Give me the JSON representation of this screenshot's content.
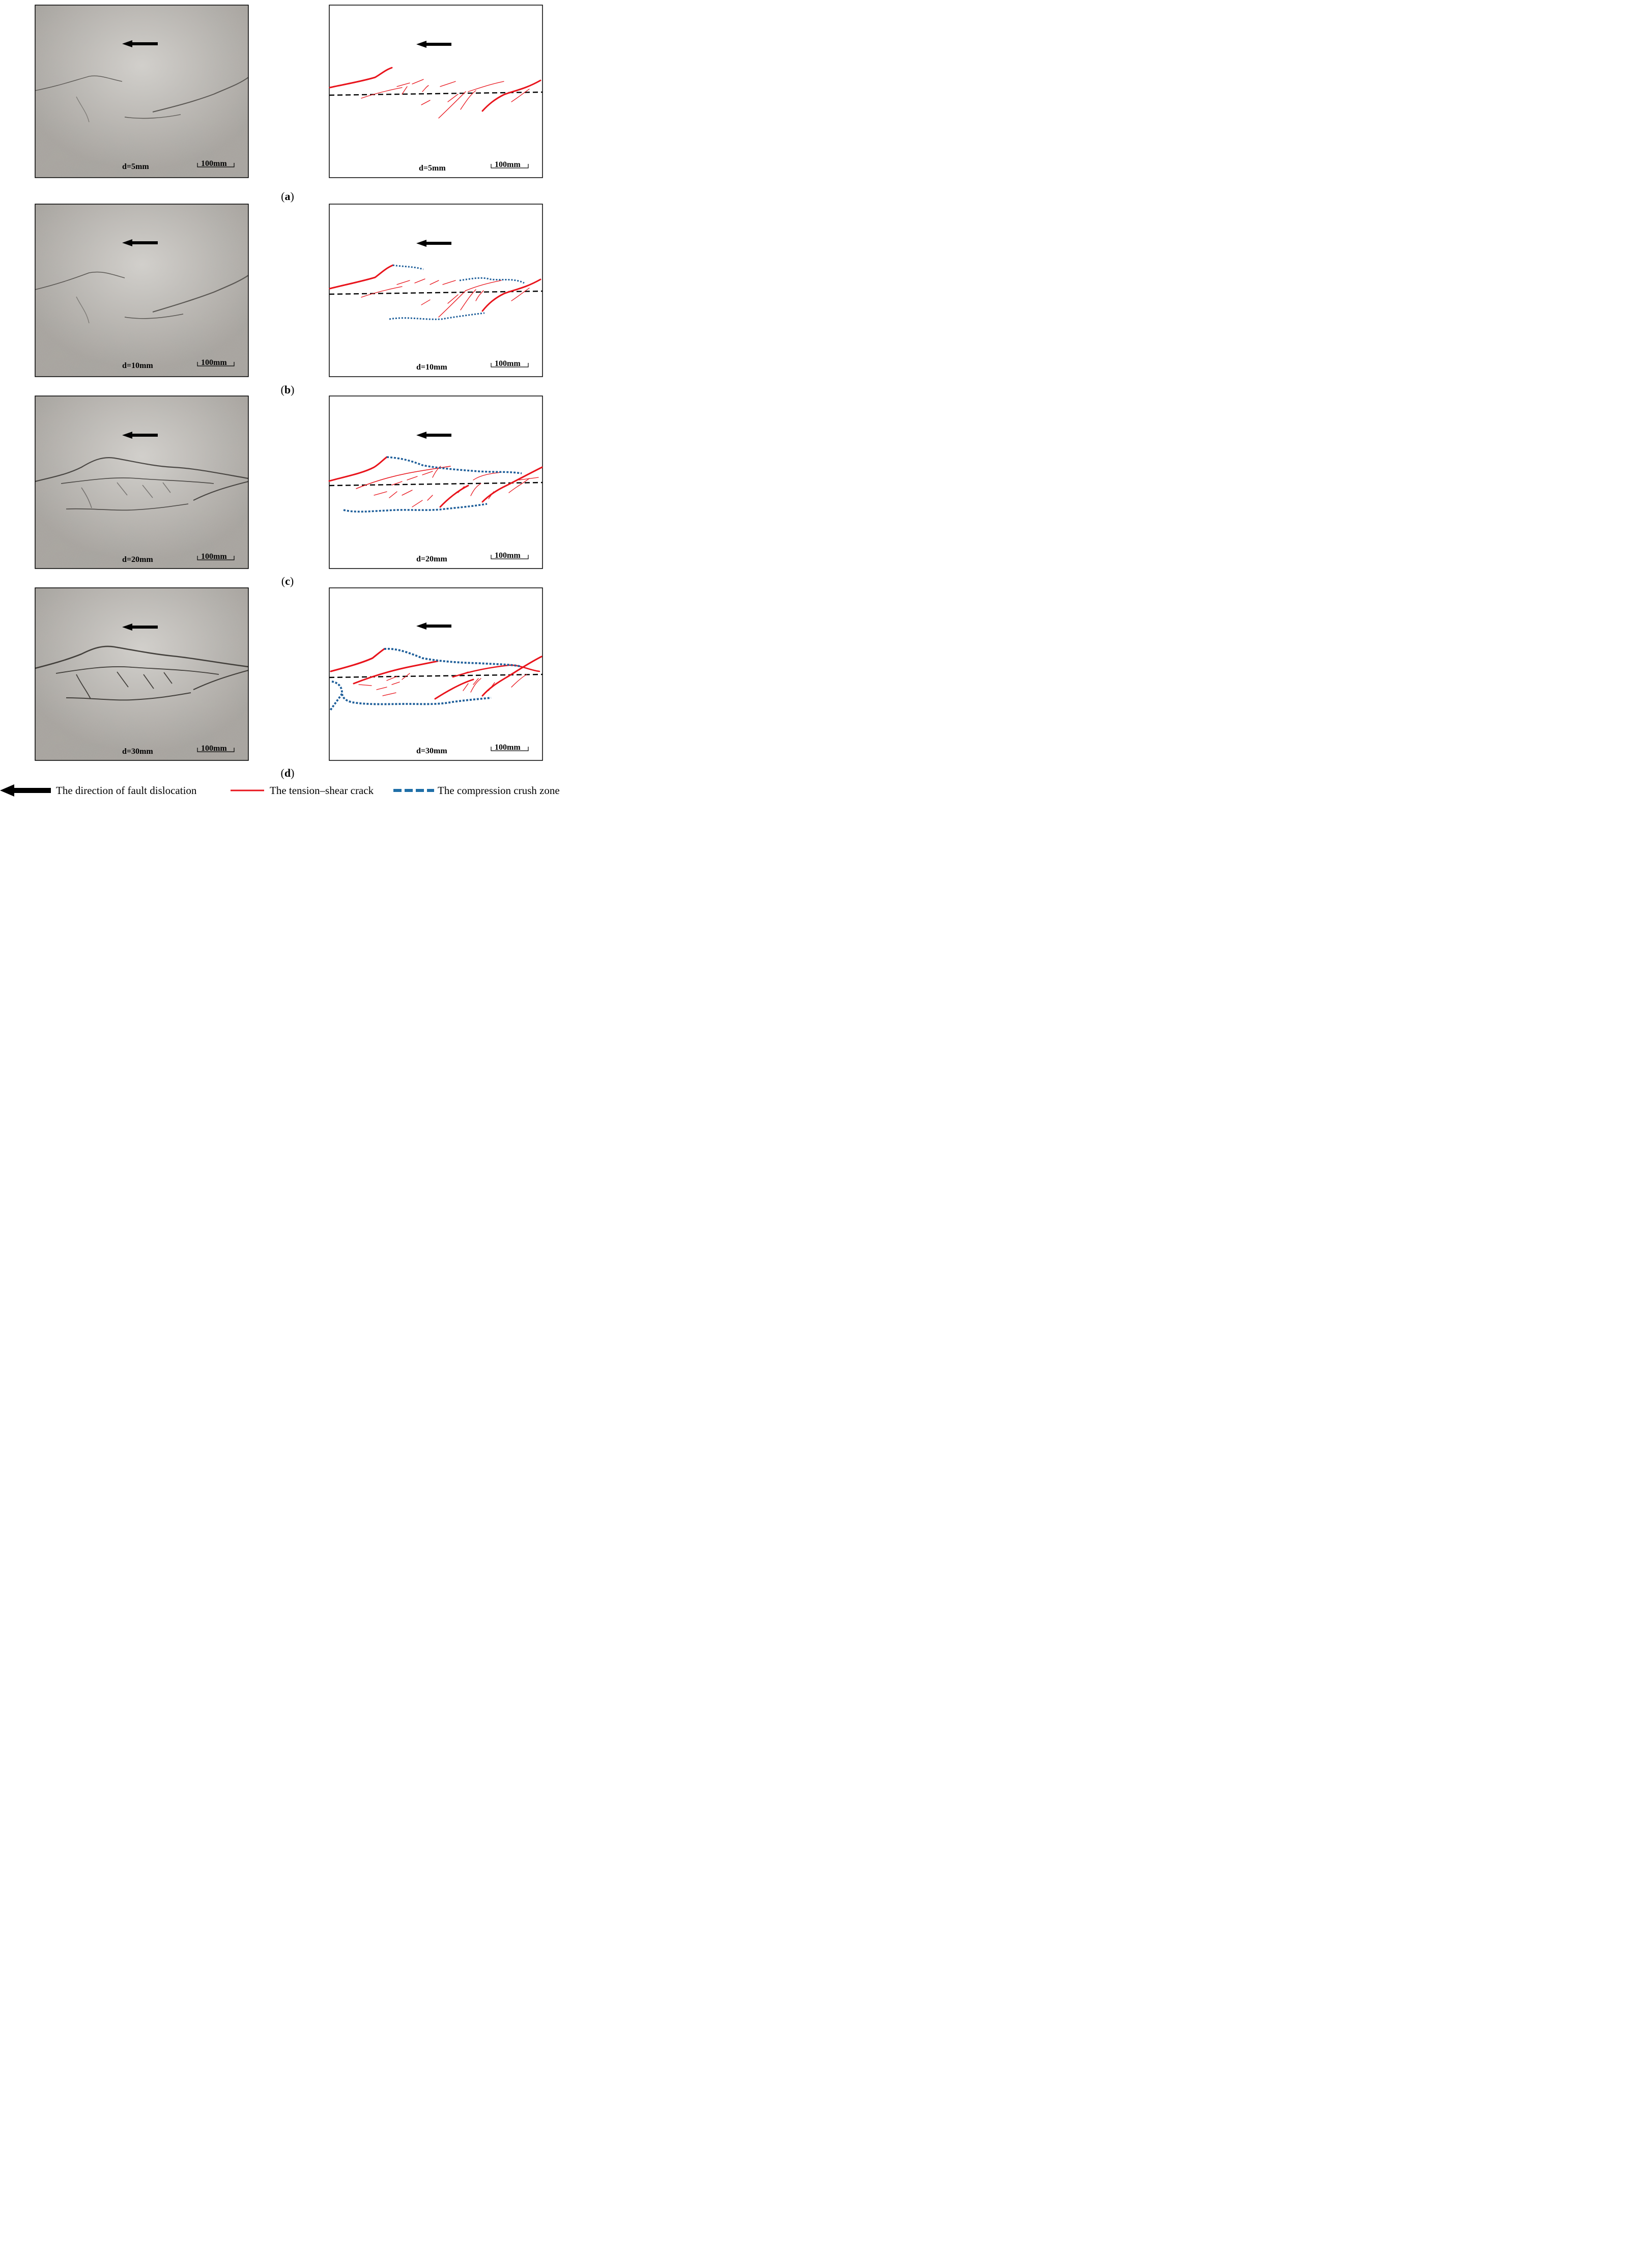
{
  "panels": [
    {
      "caption_letter": "a",
      "displacement_label": "d=5mm"
    },
    {
      "caption_letter": "b",
      "displacement_label": "d=10mm"
    },
    {
      "caption_letter": "c",
      "displacement_label": "d=20mm"
    },
    {
      "caption_letter": "d",
      "displacement_label": "d=30mm"
    }
  ],
  "scale_bar_label": "100mm",
  "legend": {
    "arrow": "The direction of fault dislocation",
    "crack": "The tension–shear crack",
    "crush": "The compression crush zone"
  },
  "colors": {
    "crack": "#e8141c",
    "crush_zone": "#1f5f9a",
    "fault_line": "#000000",
    "arrow": "#000000",
    "photo_base": "#a6a29c"
  }
}
